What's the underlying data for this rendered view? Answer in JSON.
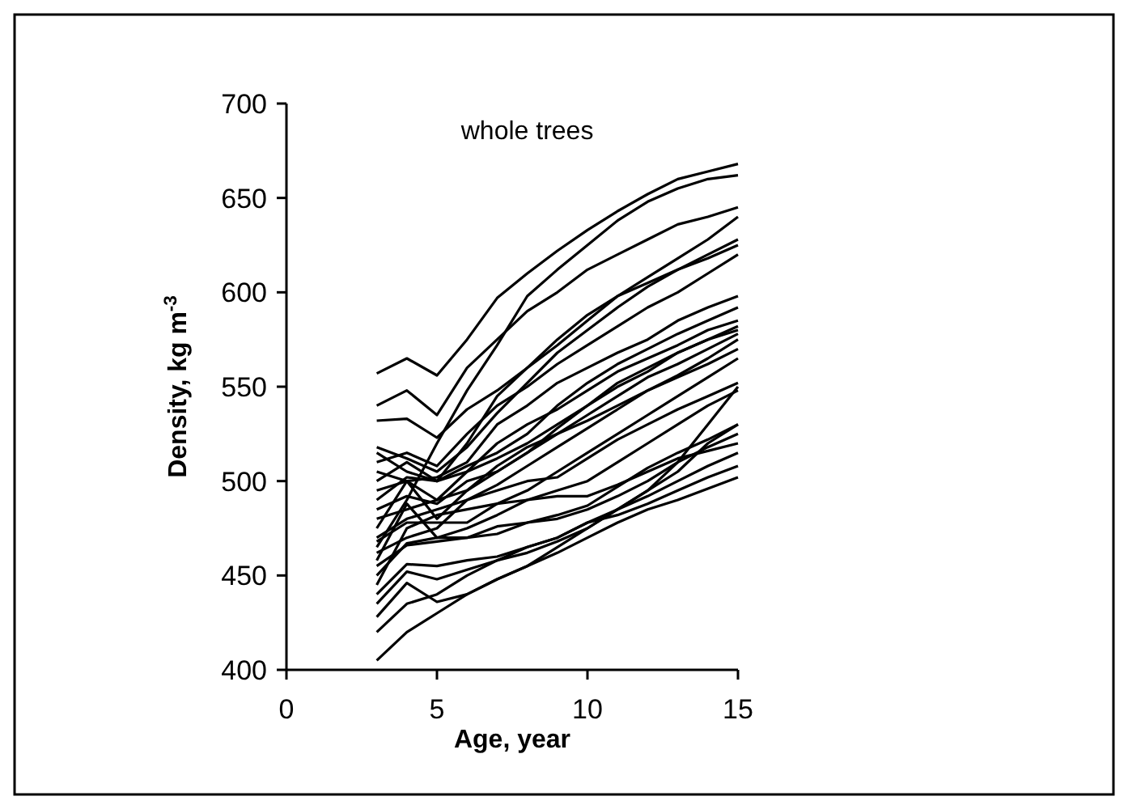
{
  "chart_data": {
    "type": "line",
    "title": "whole trees",
    "xlabel": "Age, year",
    "ylabel": "Density, kg m$^{-3}$",
    "x": [
      3,
      4,
      5,
      6,
      7,
      8,
      9,
      10,
      11,
      12,
      13,
      14,
      15
    ],
    "xlim": [
      0,
      15
    ],
    "xticks": [
      0,
      5,
      10,
      15
    ],
    "ylim": [
      400,
      700
    ],
    "yticks": [
      400,
      450,
      500,
      550,
      600,
      650,
      700
    ],
    "grid": false,
    "marker": "none",
    "line_style": "solid",
    "series": [
      {
        "color": "#000000",
        "values": [
          557,
          565,
          556,
          575,
          597,
          610,
          622,
          633,
          643,
          652,
          660,
          664,
          668
        ]
      },
      {
        "color": "#000000",
        "values": [
          540,
          548,
          535,
          560,
          575,
          590,
          600,
          612,
          620,
          628,
          636,
          640,
          645
        ]
      },
      {
        "color": "#000000",
        "values": [
          465,
          490,
          520,
          548,
          572,
          598,
          612,
          625,
          638,
          648,
          655,
          660,
          662
        ]
      },
      {
        "color": "#000000",
        "values": [
          532,
          533,
          523,
          538,
          548,
          560,
          572,
          585,
          598,
          608,
          618,
          628,
          640
        ]
      },
      {
        "color": "#000000",
        "values": [
          518,
          512,
          505,
          518,
          536,
          552,
          568,
          580,
          592,
          603,
          612,
          620,
          628
        ]
      },
      {
        "color": "#000000",
        "values": [
          515,
          505,
          500,
          520,
          545,
          560,
          575,
          588,
          598,
          605,
          612,
          618,
          625
        ]
      },
      {
        "color": "#000000",
        "values": [
          510,
          515,
          508,
          525,
          540,
          550,
          562,
          572,
          582,
          592,
          600,
          610,
          620
        ]
      },
      {
        "color": "#000000",
        "values": [
          505,
          500,
          502,
          510,
          530,
          540,
          552,
          560,
          568,
          575,
          585,
          592,
          598
        ]
      },
      {
        "color": "#000000",
        "values": [
          500,
          510,
          500,
          508,
          515,
          525,
          540,
          552,
          562,
          570,
          578,
          585,
          592
        ]
      },
      {
        "color": "#000000",
        "values": [
          495,
          500,
          490,
          505,
          520,
          530,
          538,
          548,
          558,
          565,
          572,
          580,
          585
        ]
      },
      {
        "color": "#000000",
        "values": [
          490,
          502,
          500,
          505,
          512,
          520,
          530,
          540,
          550,
          558,
          568,
          575,
          582
        ]
      },
      {
        "color": "#000000",
        "values": [
          485,
          492,
          488,
          500,
          505,
          515,
          528,
          540,
          552,
          560,
          568,
          575,
          580
        ]
      },
      {
        "color": "#000000",
        "values": [
          480,
          485,
          490,
          495,
          505,
          515,
          525,
          535,
          545,
          555,
          562,
          570,
          578
        ]
      },
      {
        "color": "#000000",
        "values": [
          475,
          500,
          480,
          495,
          508,
          518,
          525,
          532,
          540,
          548,
          556,
          565,
          575
        ]
      },
      {
        "color": "#000000",
        "values": [
          470,
          480,
          485,
          490,
          498,
          508,
          518,
          528,
          538,
          548,
          555,
          562,
          570
        ]
      },
      {
        "color": "#000000",
        "values": [
          468,
          478,
          478,
          478,
          488,
          495,
          505,
          515,
          525,
          535,
          545,
          555,
          565
        ]
      },
      {
        "color": "#000000",
        "values": [
          462,
          470,
          475,
          490,
          495,
          500,
          502,
          512,
          522,
          530,
          538,
          545,
          552
        ]
      },
      {
        "color": "#000000",
        "values": [
          458,
          488,
          470,
          475,
          482,
          490,
          495,
          500,
          510,
          520,
          530,
          540,
          548
        ]
      },
      {
        "color": "#000000",
        "values": [
          455,
          466,
          468,
          470,
          476,
          478,
          482,
          487,
          497,
          507,
          515,
          522,
          530
        ]
      },
      {
        "color": "#000000",
        "values": [
          450,
          467,
          470,
          470,
          472,
          478,
          480,
          485,
          492,
          500,
          510,
          518,
          525
        ]
      },
      {
        "color": "#000000",
        "values": [
          445,
          475,
          482,
          485,
          488,
          490,
          492,
          492,
          498,
          505,
          512,
          516,
          520
        ]
      },
      {
        "color": "#000000",
        "values": [
          440,
          456,
          455,
          458,
          460,
          465,
          470,
          478,
          485,
          492,
          500,
          508,
          515
        ]
      },
      {
        "color": "#000000",
        "values": [
          435,
          452,
          448,
          453,
          458,
          462,
          468,
          475,
          485,
          495,
          505,
          520,
          530
        ]
      },
      {
        "color": "#000000",
        "values": [
          428,
          446,
          436,
          440,
          448,
          455,
          465,
          475,
          485,
          495,
          510,
          530,
          550
        ]
      },
      {
        "color": "#000000",
        "values": [
          420,
          435,
          440,
          450,
          458,
          465,
          470,
          478,
          482,
          488,
          495,
          502,
          508
        ]
      },
      {
        "color": "#000000",
        "values": [
          405,
          420,
          430,
          440,
          448,
          455,
          462,
          470,
          478,
          485,
          490,
          496,
          502
        ]
      }
    ]
  }
}
